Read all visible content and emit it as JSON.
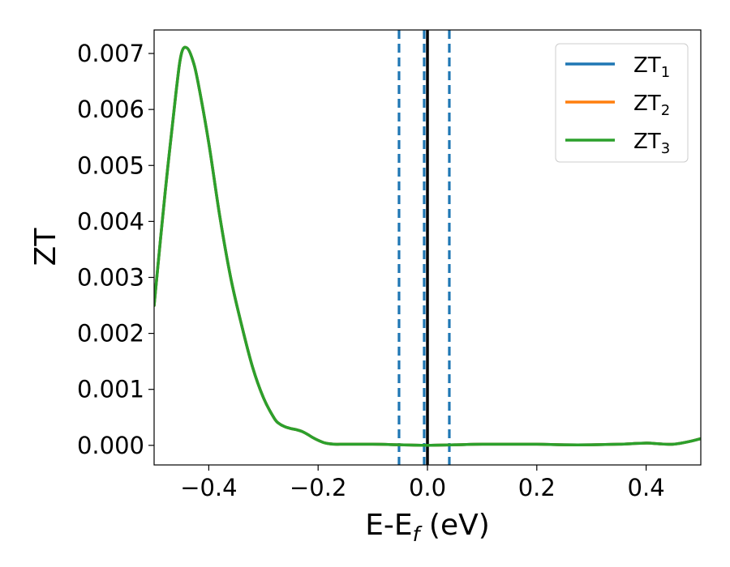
{
  "chart_data": {
    "type": "line",
    "xlabel": "E-E",
    "xlabel_sub": "f",
    "xlabel_unit": " (eV)",
    "ylabel": "ZT",
    "xlim": [
      -0.5,
      0.5
    ],
    "ylim": [
      -0.00035,
      0.00742
    ],
    "x_ticks": [
      -0.4,
      -0.2,
      0.0,
      0.2,
      0.4
    ],
    "x_tick_labels": [
      "−0.4",
      "−0.2",
      "0.0",
      "0.2",
      "0.4"
    ],
    "y_ticks": [
      0,
      0.001,
      0.002,
      0.003,
      0.004,
      0.005,
      0.006,
      0.007
    ],
    "y_tick_labels": [
      "0.000",
      "0.001",
      "0.002",
      "0.003",
      "0.004",
      "0.005",
      "0.006",
      "0.007"
    ],
    "grid": false,
    "legend_position": "top-right",
    "x": [
      -0.5,
      -0.48,
      -0.46,
      -0.45,
      -0.44,
      -0.43,
      -0.42,
      -0.4,
      -0.38,
      -0.36,
      -0.34,
      -0.32,
      -0.3,
      -0.28,
      -0.27,
      -0.26,
      -0.25,
      -0.24,
      -0.23,
      -0.22,
      -0.21,
      -0.2,
      -0.19,
      -0.18,
      -0.17,
      -0.16,
      -0.15,
      -0.1,
      -0.05,
      0.0,
      0.05,
      0.1,
      0.15,
      0.2,
      0.25,
      0.3,
      0.35,
      0.4,
      0.42,
      0.45,
      0.48,
      0.5
    ],
    "series": [
      {
        "name": "ZT",
        "sub": "1",
        "color": "#1f77b4",
        "values": [
          0.0025,
          0.0045,
          0.0063,
          0.007,
          0.0071,
          0.0069,
          0.0065,
          0.0054,
          0.0041,
          0.003,
          0.00215,
          0.0014,
          0.00085,
          0.00048,
          0.00038,
          0.00033,
          0.0003,
          0.00028,
          0.00025,
          0.0002,
          0.00014,
          9e-05,
          5e-05,
          3e-05,
          2e-05,
          2e-05,
          2e-05,
          2e-05,
          1e-05,
          0.0,
          1e-05,
          2e-05,
          2e-05,
          2e-05,
          1e-05,
          1e-05,
          2e-05,
          4e-05,
          3e-05,
          2e-05,
          7e-05,
          0.00012
        ]
      },
      {
        "name": "ZT",
        "sub": "2",
        "color": "#ff7f0e",
        "values": [
          0.0025,
          0.0045,
          0.0063,
          0.007,
          0.0071,
          0.0069,
          0.0065,
          0.0054,
          0.0041,
          0.003,
          0.00215,
          0.0014,
          0.00085,
          0.00048,
          0.00038,
          0.00033,
          0.0003,
          0.00028,
          0.00025,
          0.0002,
          0.00014,
          9e-05,
          5e-05,
          3e-05,
          2e-05,
          2e-05,
          2e-05,
          2e-05,
          1e-05,
          0.0,
          1e-05,
          2e-05,
          2e-05,
          2e-05,
          1e-05,
          1e-05,
          2e-05,
          4e-05,
          3e-05,
          2e-05,
          7e-05,
          0.00012
        ]
      },
      {
        "name": "ZT",
        "sub": "3",
        "color": "#2ca02c",
        "values": [
          0.0025,
          0.0045,
          0.0063,
          0.007,
          0.0071,
          0.0069,
          0.0065,
          0.0054,
          0.0041,
          0.003,
          0.00215,
          0.0014,
          0.00085,
          0.00048,
          0.00038,
          0.00033,
          0.0003,
          0.00028,
          0.00025,
          0.0002,
          0.00014,
          9e-05,
          5e-05,
          3e-05,
          2e-05,
          2e-05,
          2e-05,
          2e-05,
          1e-05,
          0.0,
          1e-05,
          2e-05,
          2e-05,
          2e-05,
          1e-05,
          1e-05,
          2e-05,
          4e-05,
          3e-05,
          2e-05,
          7e-05,
          0.00012
        ]
      }
    ],
    "vlines": [
      {
        "x": -0.052,
        "style": "dashed",
        "color": "#1f77b4"
      },
      {
        "x": -0.006,
        "style": "dashed",
        "color": "#1f77b4"
      },
      {
        "x": 0.0,
        "style": "solid",
        "color": "#000000"
      },
      {
        "x": 0.04,
        "style": "dashed",
        "color": "#1f77b4"
      }
    ]
  }
}
